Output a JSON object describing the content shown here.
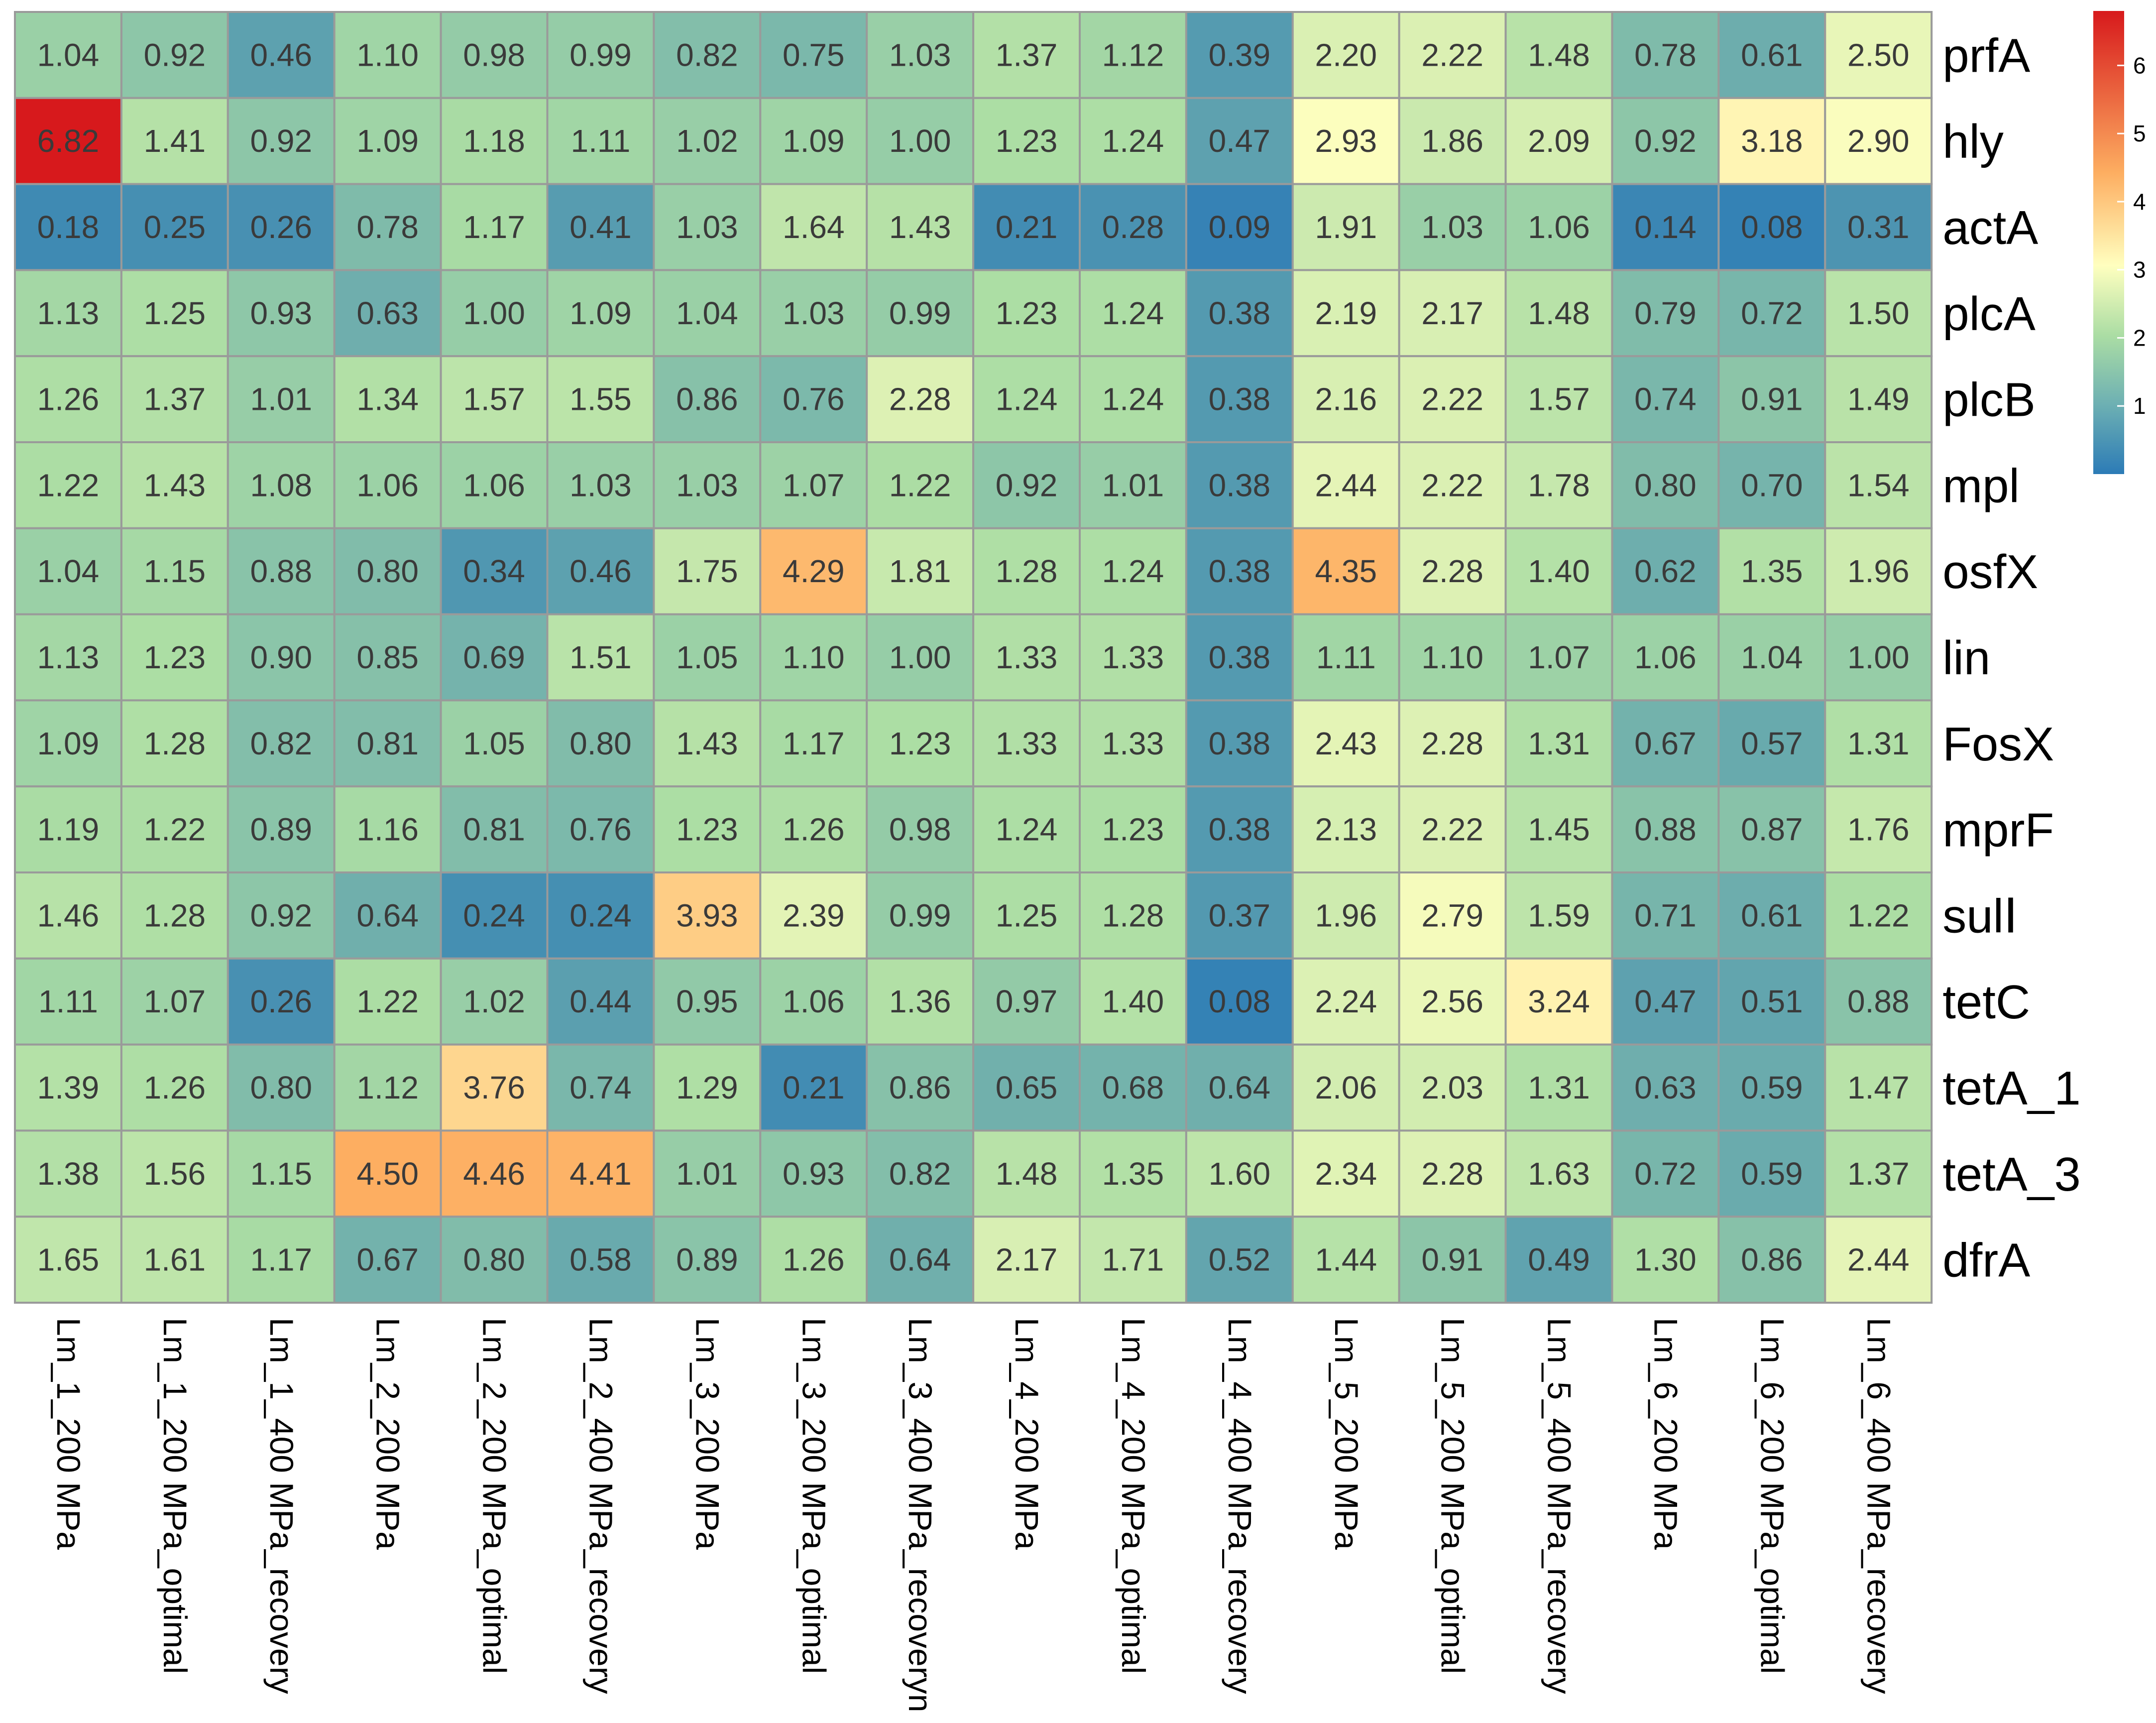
{
  "chart_data": {
    "type": "heatmap",
    "rows": [
      "prfA",
      "hly",
      "actA",
      "plcA",
      "plcB",
      "mpl",
      "osfX",
      "lin",
      "FosX",
      "mprF",
      "sulⅠ",
      "tetC",
      "tetA_1",
      "tetA_3",
      "dfrA"
    ],
    "columns": [
      "Lm_1_200 MPa",
      "Lm_1_200 MPa_optimal",
      "Lm_1_400 MPa_recovery",
      "Lm_2_200 MPa",
      "Lm_2_200 MPa_optimal",
      "Lm_2_400 MPa_recovery",
      "Lm_3_200 MPa",
      "Lm_3_200 MPa_optimal",
      "Lm_3_400 MPa_recoveryn",
      "Lm_4_200 MPa",
      "Lm_4_200 MPa_optimal",
      "Lm_4_400 MPa_recovery",
      "Lm_5_200 MPa",
      "Lm_5_200 MPa_optimal",
      "Lm_5_400 MPa_recovery",
      "Lm_6_200 MPa",
      "Lm_6_200 MPa_optimal",
      "Lm_6_400 MPa_recovery"
    ],
    "values": [
      [
        "1.04",
        "0.92",
        "0.46",
        "1.10",
        "0.98",
        "0.99",
        "0.82",
        "0.75",
        "1.03",
        "1.37",
        "1.12",
        "0.39",
        "2.20",
        "2.22",
        "1.48",
        "0.78",
        "0.61",
        "2.50"
      ],
      [
        "6.82",
        "1.41",
        "0.92",
        "1.09",
        "1.18",
        "1.11",
        "1.02",
        "1.09",
        "1.00",
        "1.23",
        "1.24",
        "0.47",
        "2.93",
        "1.86",
        "2.09",
        "0.92",
        "3.18",
        "2.90"
      ],
      [
        "0.18",
        "0.25",
        "0.26",
        "0.78",
        "1.17",
        "0.41",
        "1.03",
        "1.64",
        "1.43",
        "0.21",
        "0.28",
        "0.09",
        "1.91",
        "1.03",
        "1.06",
        "0.14",
        "0.08",
        "0.31"
      ],
      [
        "1.13",
        "1.25",
        "0.93",
        "0.63",
        "1.00",
        "1.09",
        "1.04",
        "1.03",
        "0.99",
        "1.23",
        "1.24",
        "0.38",
        "2.19",
        "2.17",
        "1.48",
        "0.79",
        "0.72",
        "1.50"
      ],
      [
        "1.26",
        "1.37",
        "1.01",
        "1.34",
        "1.57",
        "1.55",
        "0.86",
        "0.76",
        "2.28",
        "1.24",
        "1.24",
        "0.38",
        "2.16",
        "2.22",
        "1.57",
        "0.74",
        "0.91",
        "1.49"
      ],
      [
        "1.22",
        "1.43",
        "1.08",
        "1.06",
        "1.06",
        "1.03",
        "1.03",
        "1.07",
        "1.22",
        "0.92",
        "1.01",
        "0.38",
        "2.44",
        "2.22",
        "1.78",
        "0.80",
        "0.70",
        "1.54"
      ],
      [
        "1.04",
        "1.15",
        "0.88",
        "0.80",
        "0.34",
        "0.46",
        "1.75",
        "4.29",
        "1.81",
        "1.28",
        "1.24",
        "0.38",
        "4.35",
        "2.28",
        "1.40",
        "0.62",
        "1.35",
        "1.96"
      ],
      [
        "1.13",
        "1.23",
        "0.90",
        "0.85",
        "0.69",
        "1.51",
        "1.05",
        "1.10",
        "1.00",
        "1.33",
        "1.33",
        "0.38",
        "1.11",
        "1.10",
        "1.07",
        "1.06",
        "1.04",
        "1.00"
      ],
      [
        "1.09",
        "1.28",
        "0.82",
        "0.81",
        "1.05",
        "0.80",
        "1.43",
        "1.17",
        "1.23",
        "1.33",
        "1.33",
        "0.38",
        "2.43",
        "2.28",
        "1.31",
        "0.67",
        "0.57",
        "1.31"
      ],
      [
        "1.19",
        "1.22",
        "0.89",
        "1.16",
        "0.81",
        "0.76",
        "1.23",
        "1.26",
        "0.98",
        "1.24",
        "1.23",
        "0.38",
        "2.13",
        "2.22",
        "1.45",
        "0.88",
        "0.87",
        "1.76"
      ],
      [
        "1.46",
        "1.28",
        "0.92",
        "0.64",
        "0.24",
        "0.24",
        "3.93",
        "2.39",
        "0.99",
        "1.25",
        "1.28",
        "0.37",
        "1.96",
        "2.79",
        "1.59",
        "0.71",
        "0.61",
        "1.22"
      ],
      [
        "1.11",
        "1.07",
        "0.26",
        "1.22",
        "1.02",
        "0.44",
        "0.95",
        "1.06",
        "1.36",
        "0.97",
        "1.40",
        "0.08",
        "2.24",
        "2.56",
        "3.24",
        "0.47",
        "0.51",
        "0.88"
      ],
      [
        "1.39",
        "1.26",
        "0.80",
        "1.12",
        "3.76",
        "0.74",
        "1.29",
        "0.21",
        "0.86",
        "0.65",
        "0.68",
        "0.64",
        "2.06",
        "2.03",
        "1.31",
        "0.63",
        "0.59",
        "1.47"
      ],
      [
        "1.38",
        "1.56",
        "1.15",
        "4.50",
        "4.46",
        "4.41",
        "1.01",
        "0.93",
        "0.82",
        "1.48",
        "1.35",
        "1.60",
        "2.34",
        "2.28",
        "1.63",
        "0.72",
        "0.59",
        "1.37"
      ],
      [
        "1.65",
        "1.61",
        "1.17",
        "0.67",
        "0.80",
        "0.58",
        "0.89",
        "1.26",
        "0.64",
        "2.17",
        "1.71",
        "0.52",
        "1.44",
        "0.91",
        "0.49",
        "1.30",
        "0.86",
        "2.44"
      ]
    ],
    "color_scale": {
      "min": 0,
      "max": 6.8,
      "stops": [
        "#2c7bb6",
        "#abdda4",
        "#ffffbf",
        "#fdae61",
        "#d7191c"
      ]
    },
    "legend": {
      "placement": "right",
      "ticks": [
        "1",
        "2",
        "3",
        "4",
        "5",
        "6"
      ]
    },
    "cell_border_color": "#9a9a9a"
  }
}
